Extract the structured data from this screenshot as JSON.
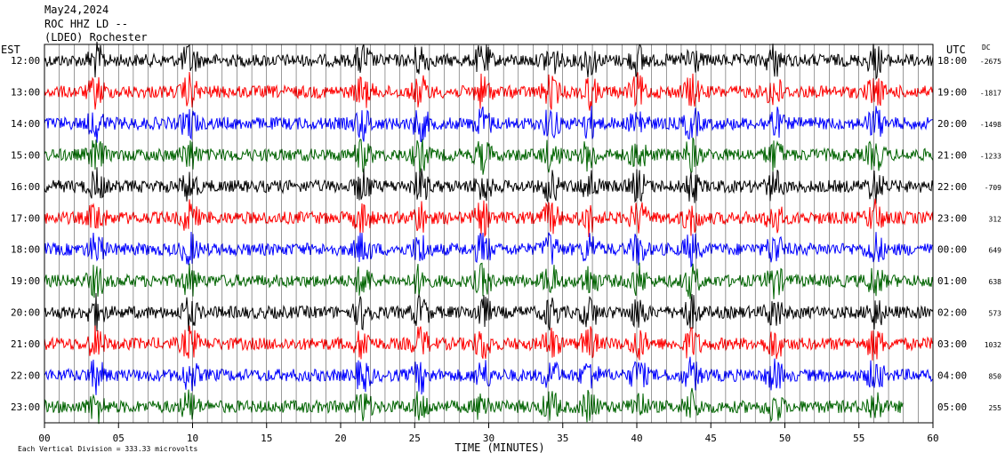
{
  "header": {
    "date": "May24,2024",
    "station": "ROC HHZ LD --",
    "network": "(LDEO) Rochester"
  },
  "labels": {
    "left_axis": "EST",
    "right_axis": "UTC",
    "dc_header": "DC",
    "xlabel": "TIME (MINUTES)",
    "footer": "Each Vertical Division = 333.33 microvolts"
  },
  "colors": {
    "black": "#000000",
    "red": "#ff0000",
    "blue": "#0000ff",
    "green": "#006400"
  },
  "chart_data": {
    "type": "line",
    "title": "ROC HHZ LD -- May24,2024",
    "xlabel": "TIME (MINUTES)",
    "xlim": [
      0,
      60
    ],
    "x_ticks": [
      "00",
      "05",
      "10",
      "15",
      "20",
      "25",
      "30",
      "35",
      "40",
      "45",
      "50",
      "55",
      "60"
    ],
    "grid": "vertical lines every minute",
    "series": [
      {
        "est": "12:00",
        "utc": "18:00",
        "dc": "-2675",
        "color": "black"
      },
      {
        "est": "13:00",
        "utc": "19:00",
        "dc": "-1817",
        "color": "red"
      },
      {
        "est": "14:00",
        "utc": "20:00",
        "dc": "-1498",
        "color": "blue"
      },
      {
        "est": "15:00",
        "utc": "21:00",
        "dc": "-1233",
        "color": "green"
      },
      {
        "est": "16:00",
        "utc": "22:00",
        "dc": "-709",
        "color": "black"
      },
      {
        "est": "17:00",
        "utc": "23:00",
        "dc": "312",
        "color": "red"
      },
      {
        "est": "18:00",
        "utc": "00:00",
        "dc": "649",
        "color": "blue"
      },
      {
        "est": "19:00",
        "utc": "01:00",
        "dc": "638",
        "color": "green"
      },
      {
        "est": "20:00",
        "utc": "02:00",
        "dc": "573",
        "color": "black"
      },
      {
        "est": "21:00",
        "utc": "03:00",
        "dc": "1032",
        "color": "red"
      },
      {
        "est": "22:00",
        "utc": "04:00",
        "dc": "850",
        "color": "blue"
      },
      {
        "est": "23:00",
        "utc": "05:00",
        "dc": "255",
        "color": "green",
        "partial_end_minute": 58
      }
    ]
  }
}
